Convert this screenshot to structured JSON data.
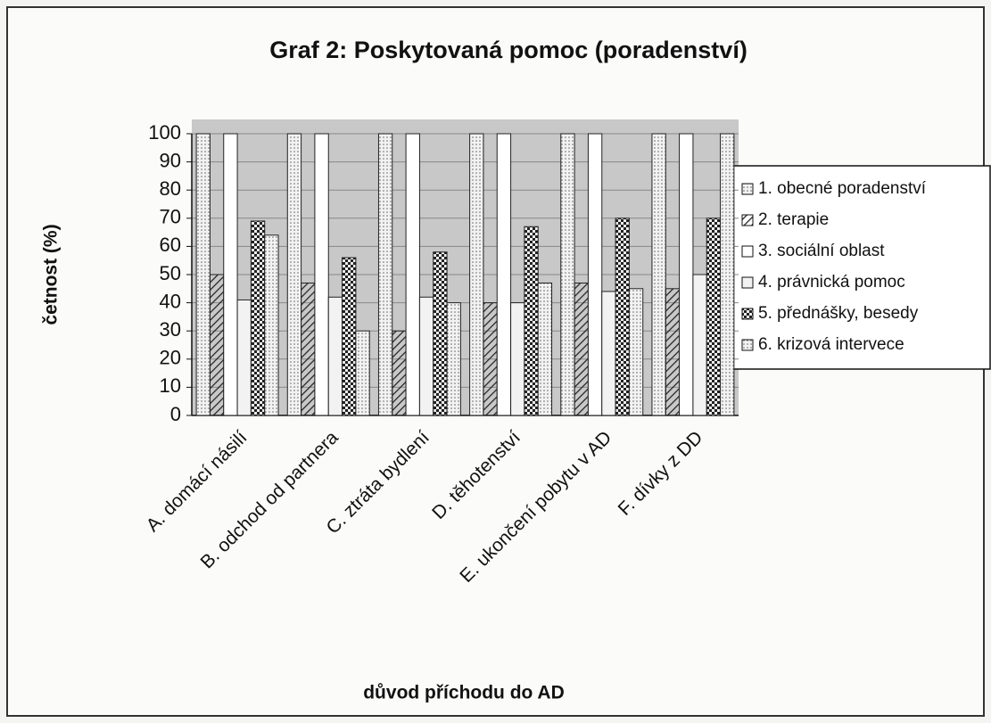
{
  "chart_data": {
    "type": "bar",
    "title": "Graf 2: Poskytovaná pomoc (poradenství)",
    "x_label": "důvod příchodu do AD",
    "y_label": "četnost (%)",
    "categories": [
      "A. domácí násilí",
      "B. odchod od partnera",
      "C. ztráta bydlení",
      "D. těhotenství",
      "E. ukončení pobytu v AD",
      "F. dívky z DD"
    ],
    "series": [
      {
        "name": "1. obecné poradenství",
        "color": "#e6e6e6",
        "values": [
          100,
          100,
          100,
          100,
          100,
          100
        ]
      },
      {
        "name": "2. terapie",
        "color": "#bdbdbd",
        "values": [
          50,
          47,
          30,
          40,
          47,
          45
        ]
      },
      {
        "name": "3. sociální oblast",
        "color": "#ffffff",
        "values": [
          100,
          100,
          100,
          100,
          100,
          100
        ]
      },
      {
        "name": "4. právnická pomoc",
        "color": "#f2f2f2",
        "values": [
          41,
          42,
          42,
          40,
          44,
          50
        ]
      },
      {
        "name": "5. přednášky, besedy",
        "color": "#555555",
        "values": [
          69,
          56,
          58,
          67,
          70,
          70
        ]
      },
      {
        "name": "6. krizová intervece",
        "color": "#d0d0d0",
        "values": [
          64,
          30,
          40,
          47,
          45,
          100
        ]
      }
    ],
    "ylim": [
      0,
      100
    ],
    "yticks": [
      0,
      10,
      20,
      30,
      40,
      50,
      60,
      70,
      80,
      90,
      100
    ],
    "grid": true,
    "legend": "right"
  }
}
